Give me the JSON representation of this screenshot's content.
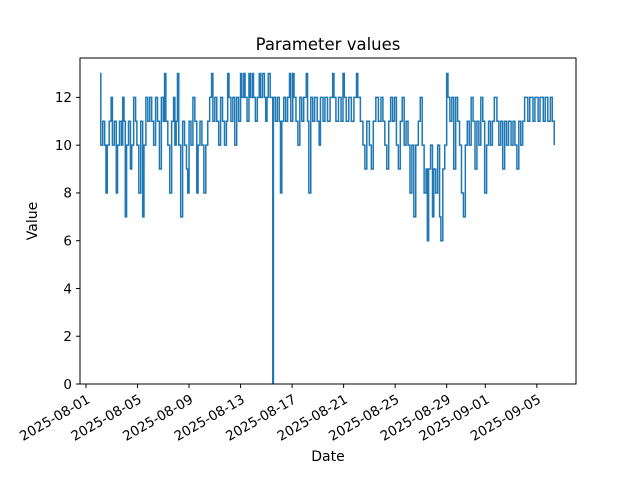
{
  "figure": {
    "background": "#ffffff"
  },
  "chart_data": {
    "type": "line",
    "title": "Parameter values",
    "xlabel": "Date",
    "ylabel": "Value",
    "line_color": "#1f77b4",
    "line_width": 1.5,
    "grid": false,
    "legend": null,
    "x_start_date": "2025-08-01",
    "xlim_days": [
      -0.466,
      38.04
    ],
    "ylim": [
      0,
      13.65
    ],
    "y_ticks": [
      0,
      2,
      4,
      6,
      8,
      10,
      12
    ],
    "x_ticks": [
      {
        "label": "2025-08-01",
        "day": 0
      },
      {
        "label": "2025-08-05",
        "day": 4
      },
      {
        "label": "2025-08-09",
        "day": 8
      },
      {
        "label": "2025-08-13",
        "day": 12
      },
      {
        "label": "2025-08-17",
        "day": 16
      },
      {
        "label": "2025-08-21",
        "day": 20
      },
      {
        "label": "2025-08-25",
        "day": 24
      },
      {
        "label": "2025-08-29",
        "day": 28
      },
      {
        "label": "2025-09-01",
        "day": 31
      },
      {
        "label": "2025-09-05",
        "day": 35
      }
    ],
    "x_days": [
      1.09,
      1.15,
      1.3,
      1.45,
      1.55,
      1.65,
      1.8,
      1.95,
      2.05,
      2.2,
      2.35,
      2.45,
      2.6,
      2.75,
      2.85,
      2.95,
      3.05,
      3.15,
      3.3,
      3.45,
      3.55,
      3.7,
      3.85,
      3.95,
      4.1,
      4.25,
      4.4,
      4.5,
      4.65,
      4.8,
      4.95,
      5.1,
      5.25,
      5.4,
      5.55,
      5.7,
      5.85,
      6.0,
      6.1,
      6.2,
      6.35,
      6.5,
      6.65,
      6.8,
      6.9,
      7.0,
      7.1,
      7.2,
      7.35,
      7.5,
      7.65,
      7.8,
      7.9,
      8.0,
      8.15,
      8.3,
      8.45,
      8.6,
      8.7,
      8.85,
      9.0,
      9.15,
      9.3,
      9.45,
      9.6,
      9.75,
      9.85,
      10.0,
      10.15,
      10.3,
      10.45,
      10.6,
      10.75,
      10.9,
      11.0,
      11.1,
      11.25,
      11.4,
      11.55,
      11.7,
      11.85,
      12.0,
      12.1,
      12.25,
      12.35,
      12.5,
      12.65,
      12.75,
      12.9,
      13.0,
      13.15,
      13.3,
      13.45,
      13.55,
      13.7,
      13.85,
      13.95,
      14.05,
      14.15,
      14.3,
      14.45,
      14.5,
      14.55,
      14.7,
      14.85,
      15.0,
      15.1,
      15.2,
      15.35,
      15.5,
      15.65,
      15.8,
      15.9,
      16.05,
      16.15,
      16.3,
      16.45,
      16.6,
      16.75,
      16.9,
      17.1,
      17.2,
      17.3,
      17.45,
      17.6,
      17.75,
      17.95,
      18.1,
      18.2,
      18.4,
      18.55,
      18.75,
      18.95,
      19.15,
      19.25,
      19.4,
      19.6,
      19.8,
      19.95,
      20.05,
      20.2,
      20.4,
      20.6,
      20.8,
      21.0,
      21.1,
      21.3,
      21.5,
      21.65,
      21.8,
      22.0,
      22.15,
      22.3,
      22.5,
      22.7,
      22.9,
      23.05,
      23.2,
      23.35,
      23.5,
      23.65,
      23.8,
      23.95,
      24.1,
      24.25,
      24.4,
      24.55,
      24.7,
      24.85,
      25.0,
      25.15,
      25.3,
      25.45,
      25.6,
      25.8,
      25.95,
      26.1,
      26.25,
      26.4,
      26.5,
      26.6,
      26.75,
      26.9,
      27.0,
      27.15,
      27.3,
      27.45,
      27.55,
      27.7,
      27.85,
      28.0,
      28.1,
      28.25,
      28.4,
      28.55,
      28.7,
      28.85,
      29.0,
      29.15,
      29.3,
      29.45,
      29.6,
      29.75,
      29.9,
      30.05,
      30.2,
      30.35,
      30.5,
      30.65,
      30.8,
      30.95,
      31.1,
      31.25,
      31.4,
      31.55,
      31.7,
      31.9,
      32.05,
      32.2,
      32.35,
      32.5,
      32.65,
      32.8,
      33.0,
      33.15,
      33.3,
      33.45,
      33.6,
      33.75,
      33.9,
      34.05,
      34.3,
      34.45,
      34.7,
      34.85,
      35.1,
      35.25,
      35.5,
      35.65,
      35.85,
      36.05,
      36.2,
      36.35
    ],
    "values": [
      13,
      10,
      11,
      10,
      8,
      10,
      11,
      12,
      10,
      11,
      8,
      10,
      11,
      10,
      12,
      11,
      7,
      10,
      11,
      9,
      10,
      12,
      11,
      10,
      8,
      11,
      7,
      10,
      12,
      11,
      12,
      11,
      10,
      12,
      11,
      9,
      12,
      11,
      13,
      11,
      10,
      8,
      11,
      12,
      10,
      11,
      13,
      10,
      7,
      11,
      10,
      9,
      8,
      11,
      10,
      12,
      11,
      8,
      10,
      11,
      10,
      8,
      10,
      11,
      12,
      13,
      11,
      12,
      11,
      10,
      12,
      11,
      10,
      11,
      13,
      12,
      11,
      12,
      10,
      12,
      11,
      13,
      12,
      13,
      12,
      11,
      13,
      12,
      13,
      12,
      11,
      12,
      13,
      12,
      13,
      12,
      11,
      12,
      13,
      12,
      12,
      0,
      12,
      11,
      12,
      11,
      8,
      11,
      12,
      11,
      12,
      13,
      11,
      13,
      12,
      11,
      10,
      12,
      11,
      12,
      13,
      11,
      8,
      12,
      11,
      12,
      11,
      10,
      12,
      11,
      12,
      11,
      12,
      13,
      12,
      11,
      12,
      11,
      13,
      12,
      11,
      12,
      11,
      12,
      13,
      12,
      11,
      10,
      9,
      11,
      10,
      9,
      11,
      12,
      11,
      12,
      11,
      10,
      9,
      11,
      12,
      11,
      12,
      10,
      9,
      11,
      12,
      10,
      11,
      10,
      8,
      10,
      7,
      10,
      11,
      12,
      10,
      8,
      9,
      6,
      9,
      10,
      7,
      9,
      8,
      10,
      7,
      6,
      9,
      10,
      13,
      12,
      11,
      12,
      9,
      12,
      11,
      10,
      8,
      7,
      10,
      11,
      10,
      12,
      11,
      9,
      11,
      10,
      12,
      11,
      8,
      10,
      11,
      10,
      11,
      12,
      11,
      10,
      11,
      9,
      11,
      10,
      11,
      10,
      11,
      10,
      9,
      11,
      10,
      11,
      12,
      11,
      12,
      11,
      12,
      11,
      12,
      11,
      12,
      11,
      12,
      11,
      10
    ]
  }
}
